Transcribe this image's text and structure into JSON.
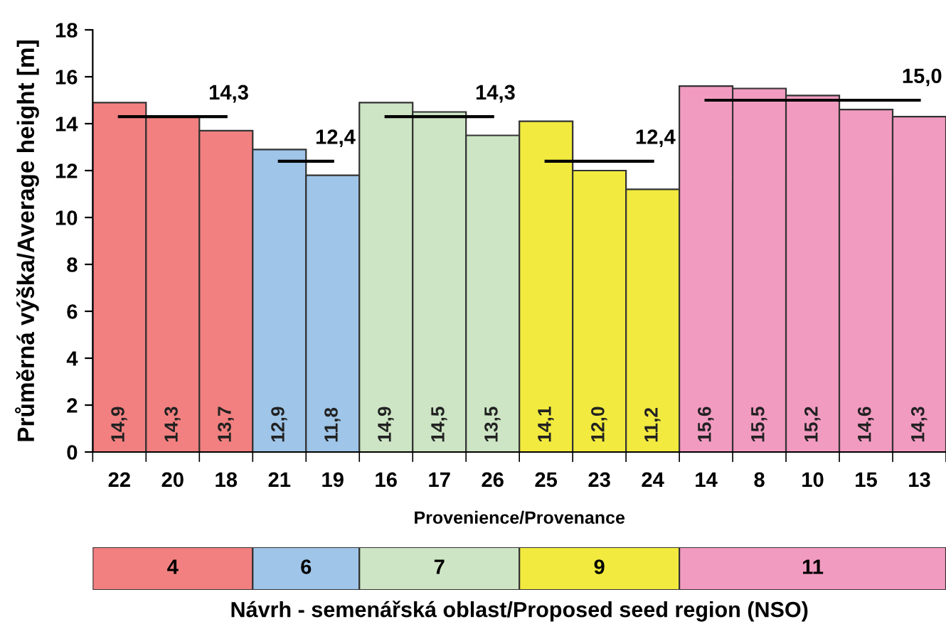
{
  "chart_data": {
    "type": "bar",
    "ylabel": "Průměrná výška/Average height [m]",
    "xlabel": "Provenience/Provenance",
    "categories": [
      "22",
      "20",
      "18",
      "21",
      "19",
      "16",
      "17",
      "26",
      "25",
      "23",
      "24",
      "14",
      "8",
      "10",
      "15",
      "13"
    ],
    "series": [
      {
        "values": [
          14.9,
          14.3,
          13.7,
          12.9,
          11.8,
          14.9,
          14.5,
          13.5,
          14.1,
          12.0,
          11.2,
          15.6,
          15.5,
          15.2,
          14.6,
          14.3
        ],
        "colors": [
          "#f28080",
          "#f28080",
          "#f28080",
          "#9fc5e8",
          "#9fc5e8",
          "#cde5c4",
          "#cde5c4",
          "#cde5c4",
          "#f2ea3f",
          "#f2ea3f",
          "#f2ea3f",
          "#f29bc0",
          "#f29bc0",
          "#f29bc0",
          "#f29bc0",
          "#f29bc0"
        ],
        "value_labels": [
          "14,9",
          "14,3",
          "13,7",
          "12,9",
          "11,8",
          "14,9",
          "14,5",
          "13,5",
          "14,1",
          "12,0",
          "11,2",
          "15,6",
          "15,5",
          "15,2",
          "14,6",
          "14,3"
        ]
      },
      {
        "type": "line",
        "color": "#000000",
        "values": [
          14.3,
          14.3,
          14.3,
          null,
          null,
          null,
          null,
          null,
          null,
          null,
          null,
          null,
          null,
          null,
          null,
          null
        ]
      },
      {
        "type": "line",
        "color": "#000000",
        "values": [
          null,
          null,
          null,
          12.4,
          12.4,
          null,
          null,
          null,
          null,
          null,
          null,
          null,
          null,
          null,
          null,
          null
        ]
      },
      {
        "type": "line",
        "color": "#000000",
        "values": [
          null,
          null,
          null,
          null,
          null,
          14.3,
          14.3,
          14.3,
          null,
          null,
          null,
          null,
          null,
          null,
          null,
          null
        ]
      },
      {
        "type": "line",
        "color": "#000000",
        "values": [
          null,
          null,
          null,
          null,
          null,
          null,
          null,
          null,
          12.4,
          12.4,
          12.4,
          null,
          null,
          null,
          null,
          null
        ]
      },
      {
        "type": "line",
        "color": "#000000",
        "values": [
          null,
          null,
          null,
          null,
          null,
          null,
          null,
          null,
          null,
          null,
          null,
          15.0,
          15.0,
          15.0,
          15.0,
          15.0
        ]
      }
    ],
    "annotations": [
      {
        "text": "14,3",
        "x": "18",
        "y": 14.3
      },
      {
        "text": "12,4",
        "x": "19",
        "y": 12.4
      },
      {
        "text": "14,3",
        "x": "26",
        "y": 14.3
      },
      {
        "text": "12,4",
        "x": "24",
        "y": 12.4
      },
      {
        "text": "15,0",
        "x": "13",
        "y": 15.0
      },
      "4",
      "6",
      "7",
      "9",
      "11",
      "Návrh - semenářská oblast/Proposed seed region (NSO)"
    ],
    "ylim": [
      0,
      18
    ],
    "yticks": [
      0,
      2,
      4,
      6,
      8,
      10,
      12,
      14,
      16,
      18
    ],
    "grid": false,
    "legend": false,
    "marker": "none"
  }
}
